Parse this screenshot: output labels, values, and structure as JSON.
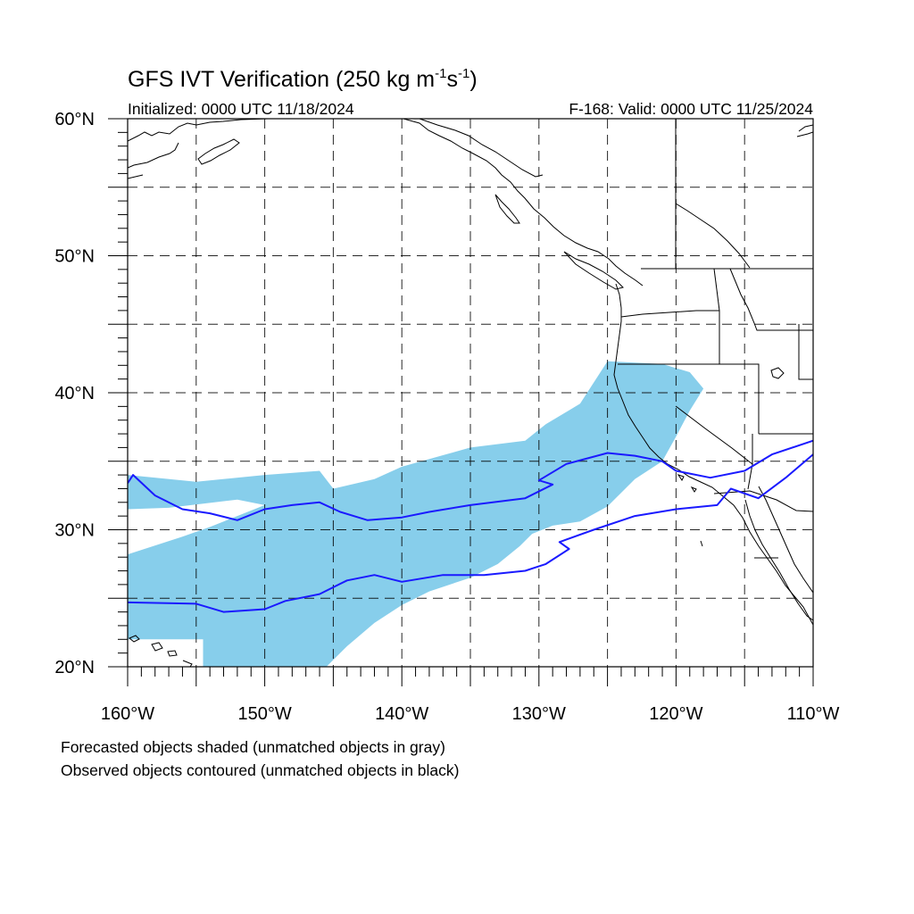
{
  "title": {
    "main": "GFS IVT Verification (250 kg m",
    "unit_exp1": "-1",
    "unit_mid": "s",
    "unit_exp2": "-1",
    "unit_close": ")"
  },
  "subtitle": {
    "left": "Initialized: 0000 UTC 11/18/2024",
    "right": "F-168: Valid: 0000 UTC 11/25/2024"
  },
  "map": {
    "lon_range": [
      -160,
      -110
    ],
    "lat_range": [
      20,
      60
    ],
    "major_lon_ticks": [
      {
        "value": -160,
        "label": "160°W"
      },
      {
        "value": -150,
        "label": "150°W"
      },
      {
        "value": -140,
        "label": "140°W"
      },
      {
        "value": -130,
        "label": "130°W"
      },
      {
        "value": -120,
        "label": "120°W"
      },
      {
        "value": -110,
        "label": "110°W"
      }
    ],
    "major_lat_ticks": [
      {
        "value": 20,
        "label": "20°N"
      },
      {
        "value": 30,
        "label": "30°N"
      },
      {
        "value": 40,
        "label": "40°N"
      },
      {
        "value": 50,
        "label": "50°N"
      },
      {
        "value": 60,
        "label": "60°N"
      }
    ],
    "grid": "dashed every 5°",
    "forecast_object_color": "#87ceeb",
    "observed_contour_color": "#1a1aff",
    "forecast_object": {
      "outline": [
        [
          -160,
          32
        ],
        [
          -160,
          34
        ],
        [
          -155,
          33.5
        ],
        [
          -150,
          34
        ],
        [
          -146,
          34.3
        ],
        [
          -145,
          33
        ],
        [
          -142,
          33.7
        ],
        [
          -140,
          34.6
        ],
        [
          -135,
          36
        ],
        [
          -131,
          36.5
        ],
        [
          -129.5,
          37.7
        ],
        [
          -127,
          39.2
        ],
        [
          -125,
          42.3
        ],
        [
          -121,
          42.1
        ],
        [
          -119,
          41.5
        ],
        [
          -118,
          40.3
        ],
        [
          -119,
          38.7
        ],
        [
          -120,
          36.8
        ],
        [
          -121,
          35
        ],
        [
          -123,
          33.7
        ],
        [
          -125,
          31.7
        ],
        [
          -127,
          30.6
        ],
        [
          -129,
          30.3
        ],
        [
          -130.5,
          29.7
        ],
        [
          -131.4,
          28.8
        ],
        [
          -133,
          27.5
        ],
        [
          -135,
          26.5
        ],
        [
          -138,
          25.5
        ],
        [
          -140,
          24.5
        ],
        [
          -142,
          23.2
        ],
        [
          -144,
          21.5
        ],
        [
          -145.5,
          20
        ],
        [
          -154.5,
          20
        ],
        [
          -154.5,
          22
        ],
        [
          -160,
          22
        ],
        [
          -160,
          28.2
        ],
        [
          -156,
          29.5
        ],
        [
          -154,
          30.2
        ],
        [
          -150,
          31.8
        ],
        [
          -152,
          32.2
        ],
        [
          -157,
          31.6
        ],
        [
          -160,
          31.5
        ]
      ]
    },
    "observed_contour": {
      "upper": [
        [
          -160,
          33.4
        ],
        [
          -159.6,
          34
        ],
        [
          -158,
          32.5
        ],
        [
          -156,
          31.5
        ],
        [
          -154,
          31.2
        ],
        [
          -152,
          30.7
        ],
        [
          -150,
          31.5
        ],
        [
          -148,
          31.8
        ],
        [
          -146,
          32
        ],
        [
          -144.5,
          31.3
        ],
        [
          -142.5,
          30.7
        ],
        [
          -140,
          30.9
        ],
        [
          -138,
          31.3
        ],
        [
          -135,
          31.8
        ],
        [
          -131,
          32.3
        ],
        [
          -129,
          33.3
        ],
        [
          -130,
          33.6
        ],
        [
          -128,
          34.8
        ],
        [
          -125,
          35.6
        ],
        [
          -123,
          35.4
        ],
        [
          -121,
          35
        ],
        [
          -120,
          34.3
        ],
        [
          -117.5,
          33.8
        ],
        [
          -115,
          34.3
        ],
        [
          -113,
          35.5
        ],
        [
          -110,
          36.5
        ]
      ],
      "lower": [
        [
          -160,
          24.7
        ],
        [
          -155,
          24.6
        ],
        [
          -153,
          24
        ],
        [
          -150,
          24.2
        ],
        [
          -148.5,
          24.8
        ],
        [
          -146,
          25.3
        ],
        [
          -144,
          26.3
        ],
        [
          -142,
          26.7
        ],
        [
          -140,
          26.2
        ],
        [
          -137,
          26.7
        ],
        [
          -134,
          26.7
        ],
        [
          -131,
          27
        ],
        [
          -129.5,
          27.5
        ],
        [
          -127.8,
          28.6
        ],
        [
          -128.5,
          29.1
        ],
        [
          -126,
          30
        ],
        [
          -123,
          31
        ],
        [
          -120,
          31.5
        ],
        [
          -117,
          31.8
        ],
        [
          -116,
          33
        ],
        [
          -114,
          32.3
        ],
        [
          -112,
          33.8
        ],
        [
          -110,
          35.5
        ]
      ]
    }
  },
  "caption": {
    "line1": "Forecasted objects shaded (unmatched objects in gray)",
    "line2": "Observed objects contoured (unmatched objects in black)"
  }
}
